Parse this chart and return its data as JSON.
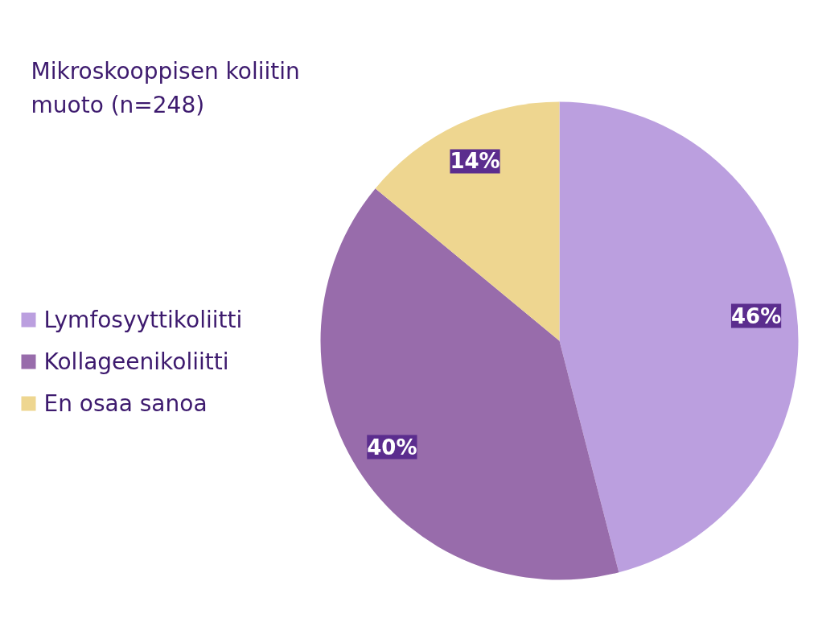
{
  "chart_data": {
    "type": "pie",
    "title": "Mikroskooppisen koliitin muoto (n=248)",
    "categories": [
      "Lymfosyyttikoliitti",
      "Kollageenikoliitti",
      "En osaa sanoa"
    ],
    "values": [
      46,
      40,
      14
    ],
    "colors": [
      "#bb9fdf",
      "#986cab",
      "#eed690"
    ],
    "value_labels": [
      "46%",
      "40%",
      "14%"
    ],
    "legend": "left"
  }
}
